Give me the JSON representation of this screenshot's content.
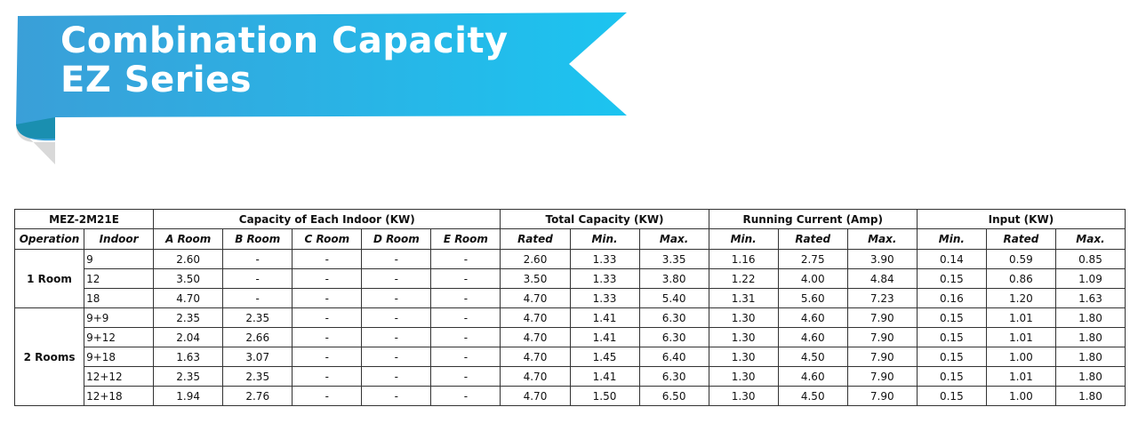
{
  "header": {
    "title_lines": [
      "Combination Capacity",
      "EZ Series"
    ]
  },
  "table": {
    "group_headers": [
      {
        "label": "MEZ-2M21E",
        "span": 2
      },
      {
        "label": "Capacity of Each Indoor (KW)",
        "span": 5
      },
      {
        "label": "Total Capacity (KW)",
        "span": 3
      },
      {
        "label": "Running Current (Amp)",
        "span": 3
      },
      {
        "label": "Input (KW)",
        "span": 3
      }
    ],
    "columns": [
      "Operation",
      "Indoor",
      "A Room",
      "B Room",
      "C Room",
      "D Room",
      "E Room",
      "Rated",
      "Min.",
      "Max.",
      "Min.",
      "Rated",
      "Max.",
      "Min.",
      "Rated",
      "Max."
    ],
    "groups": [
      {
        "label": "1 Room",
        "rows": [
          [
            "9",
            "2.60",
            "-",
            "-",
            "-",
            "-",
            "2.60",
            "1.33",
            "3.35",
            "1.16",
            "2.75",
            "3.90",
            "0.14",
            "0.59",
            "0.85"
          ],
          [
            "12",
            "3.50",
            "-",
            "-",
            "-",
            "-",
            "3.50",
            "1.33",
            "3.80",
            "1.22",
            "4.00",
            "4.84",
            "0.15",
            "0.86",
            "1.09"
          ],
          [
            "18",
            "4.70",
            "-",
            "-",
            "-",
            "-",
            "4.70",
            "1.33",
            "5.40",
            "1.31",
            "5.60",
            "7.23",
            "0.16",
            "1.20",
            "1.63"
          ]
        ]
      },
      {
        "label": "2 Rooms",
        "rows": [
          [
            "9+9",
            "2.35",
            "2.35",
            "-",
            "-",
            "-",
            "4.70",
            "1.41",
            "6.30",
            "1.30",
            "4.60",
            "7.90",
            "0.15",
            "1.01",
            "1.80"
          ],
          [
            "9+12",
            "2.04",
            "2.66",
            "-",
            "-",
            "-",
            "4.70",
            "1.41",
            "6.30",
            "1.30",
            "4.60",
            "7.90",
            "0.15",
            "1.01",
            "1.80"
          ],
          [
            "9+18",
            "1.63",
            "3.07",
            "-",
            "-",
            "-",
            "4.70",
            "1.45",
            "6.40",
            "1.30",
            "4.50",
            "7.90",
            "0.15",
            "1.00",
            "1.80"
          ],
          [
            "12+12",
            "2.35",
            "2.35",
            "-",
            "-",
            "-",
            "4.70",
            "1.41",
            "6.30",
            "1.30",
            "4.60",
            "7.90",
            "0.15",
            "1.01",
            "1.80"
          ],
          [
            "12+18",
            "1.94",
            "2.76",
            "-",
            "-",
            "-",
            "4.70",
            "1.50",
            "6.50",
            "1.30",
            "4.50",
            "7.90",
            "0.15",
            "1.00",
            "1.80"
          ]
        ]
      }
    ]
  }
}
